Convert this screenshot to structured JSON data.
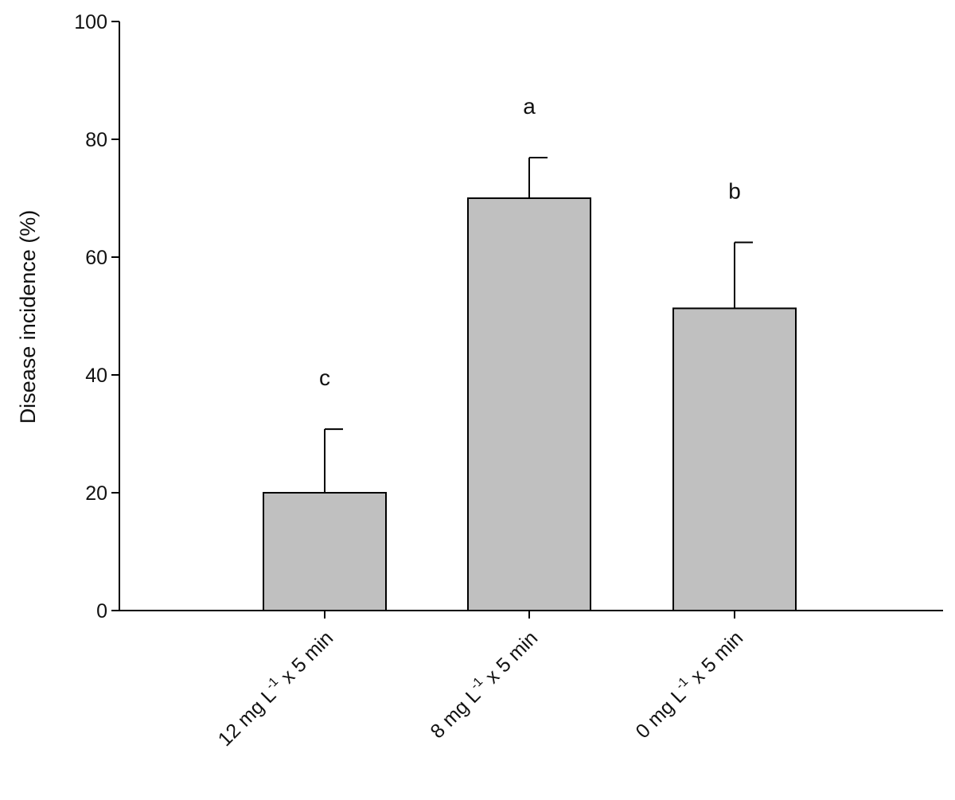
{
  "chart_data": {
    "type": "bar",
    "ylabel": "Disease incidence (%)",
    "xlabel": "",
    "ylim": [
      0,
      100
    ],
    "yticks": [
      0,
      20,
      40,
      60,
      80,
      100
    ],
    "grid": false,
    "categories": [
      {
        "prefix": "12 mg L",
        "superscript": "-1",
        "suffix": " x 5 min"
      },
      {
        "prefix": "8 mg L",
        "superscript": "-1",
        "suffix": " x 5 min"
      },
      {
        "prefix": "0 mg L",
        "superscript": "-1",
        "suffix": " x 5 min"
      }
    ],
    "values": [
      20,
      70,
      51.3
    ],
    "errors": [
      10.8,
      6.9,
      11.2
    ],
    "significance_letters": [
      "c",
      "a",
      "b"
    ],
    "bar_color": "#c0c0c0"
  }
}
